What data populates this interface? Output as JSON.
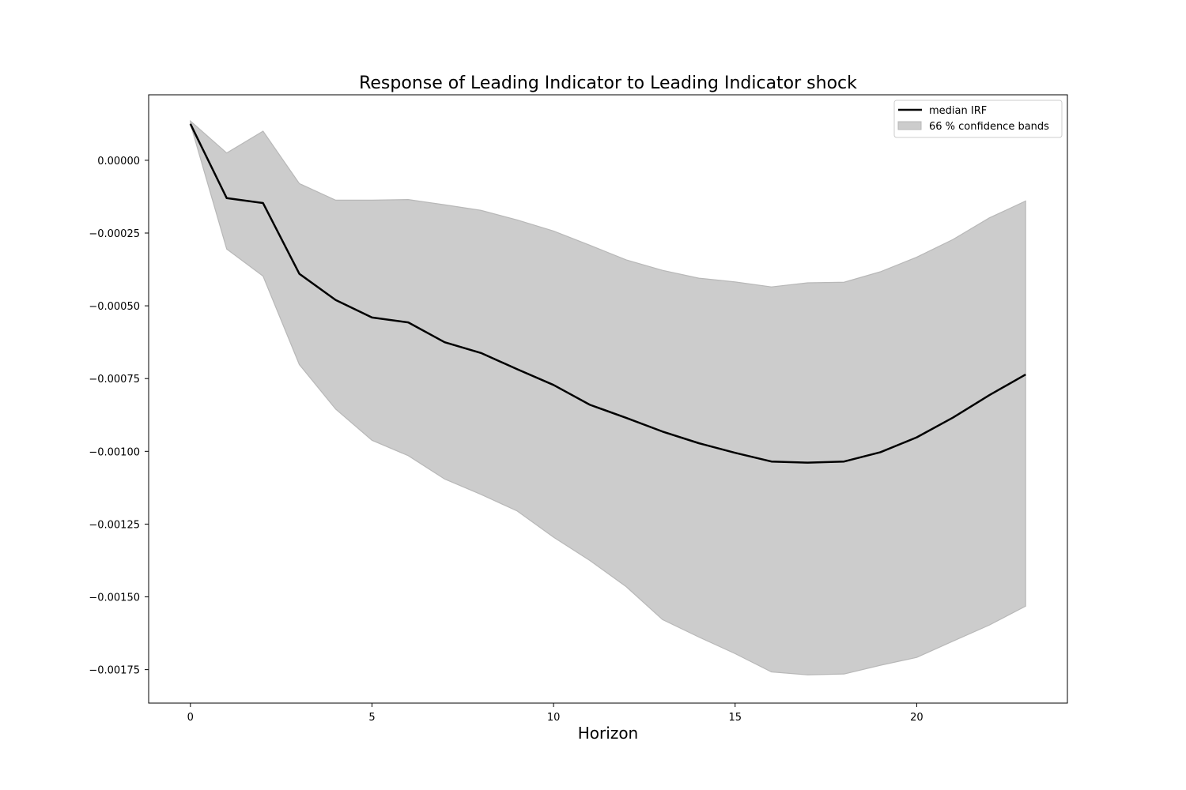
{
  "chart_data": {
    "type": "line",
    "title": "Response of Leading Indicator to Leading Indicator shock",
    "xlabel": "Horizon",
    "ylabel": "",
    "xlim": [
      -1.15,
      24.15
    ],
    "ylim": [
      -0.001865,
      0.000225
    ],
    "x_ticks": [
      0,
      5,
      10,
      15,
      20
    ],
    "x_tick_labels": [
      "0",
      "5",
      "10",
      "15",
      "20"
    ],
    "y_ticks": [
      0.0,
      -0.00025,
      -0.0005,
      -0.00075,
      -0.001,
      -0.00125,
      -0.0015,
      -0.00175
    ],
    "y_tick_labels": [
      "0.00000",
      "−0.00025",
      "−0.00050",
      "−0.00075",
      "−0.00100",
      "−0.00125",
      "−0.00150",
      "−0.00175"
    ],
    "grid": false,
    "legend": {
      "position": "top-right",
      "entries": [
        "median IRF",
        "66 % confidence bands"
      ]
    },
    "x": [
      0,
      1,
      2,
      3,
      4,
      5,
      6,
      7,
      8,
      9,
      10,
      11,
      12,
      13,
      14,
      15,
      16,
      17,
      18,
      19,
      20,
      21,
      22,
      23
    ],
    "series": [
      {
        "name": "median IRF",
        "kind": "line",
        "color": "#000000",
        "values": [
          0.000125,
          -0.00013,
          -0.000147,
          -0.00039,
          -0.00048,
          -0.00054,
          -0.000557,
          -0.000625,
          -0.000662,
          -0.000718,
          -0.000772,
          -0.00084,
          -0.000885,
          -0.000932,
          -0.000972,
          -0.001005,
          -0.001035,
          -0.001039,
          -0.001035,
          -0.001003,
          -0.000952,
          -0.000884,
          -0.000807,
          -0.000736
        ]
      },
      {
        "name": "66 % confidence bands",
        "kind": "band",
        "color": "#cccccc",
        "upper": [
          0.000135,
          2.5e-05,
          0.0001,
          -8e-05,
          -0.000137,
          -0.000137,
          -0.000135,
          -0.000153,
          -0.000172,
          -0.000205,
          -0.000243,
          -0.000292,
          -0.000342,
          -0.000378,
          -0.000405,
          -0.000418,
          -0.000435,
          -0.000421,
          -0.000419,
          -0.000383,
          -0.000333,
          -0.000272,
          -0.000198,
          -0.00014
        ],
        "lower": [
          0.000125,
          -0.000305,
          -0.000398,
          -0.000702,
          -0.000855,
          -0.000962,
          -0.001015,
          -0.001095,
          -0.001148,
          -0.001205,
          -0.001295,
          -0.001375,
          -0.001465,
          -0.001578,
          -0.001638,
          -0.001695,
          -0.001758,
          -0.001768,
          -0.001765,
          -0.001735,
          -0.001708,
          -0.001652,
          -0.001597,
          -0.001532
        ]
      }
    ]
  }
}
